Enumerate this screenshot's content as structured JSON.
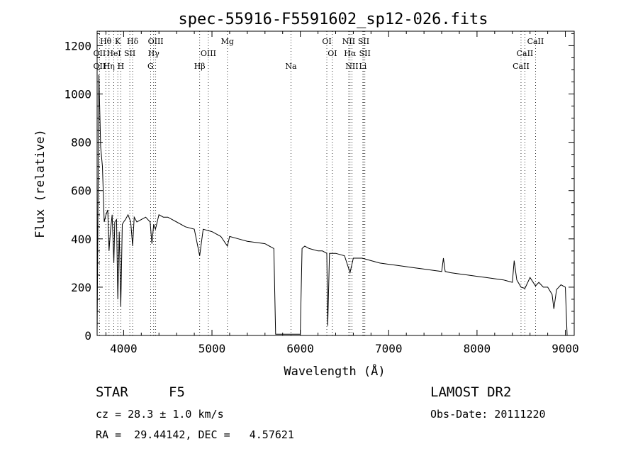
{
  "chart_data": {
    "type": "line",
    "title": "spec-55916-F5591602_sp12-026.fits",
    "xlabel": "Wavelength (Å)",
    "ylabel": "Flux (relative)",
    "xlim": [
      3700,
      9100
    ],
    "ylim": [
      0,
      1260
    ],
    "xticks": [
      4000,
      5000,
      6000,
      7000,
      8000,
      9000
    ],
    "yticks": [
      0,
      200,
      400,
      600,
      800,
      1000,
      1200
    ],
    "grid": false,
    "series": [
      {
        "x": [
          3700,
          3720,
          3740,
          3760,
          3780,
          3800,
          3820,
          3835,
          3850,
          3870,
          3889,
          3900,
          3920,
          3934,
          3950,
          3968,
          3985,
          4000,
          4020,
          4050,
          4080,
          4102,
          4120,
          4150,
          4200,
          4250,
          4300,
          4320,
          4340,
          4360,
          4400,
          4450,
          4500,
          4550,
          4600,
          4700,
          4800,
          4861,
          4900,
          5000,
          5100,
          5175,
          5200,
          5300,
          5400,
          5500,
          5600,
          5650,
          5700,
          5720,
          5900,
          6000,
          6020,
          6050,
          6100,
          6200,
          6250,
          6300,
          6310,
          6330,
          6400,
          6500,
          6563,
          6600,
          6700,
          6800,
          6900,
          7000,
          7100,
          7200,
          7300,
          7400,
          7500,
          7600,
          7620,
          7640,
          7700,
          7800,
          7900,
          8000,
          8100,
          8200,
          8300,
          8350,
          8400,
          8420,
          8450,
          8498,
          8542,
          8600,
          8662,
          8700,
          8750,
          8800,
          8850,
          8870,
          8900,
          8950,
          9000,
          9020
        ],
        "y": [
          0,
          1080,
          780,
          700,
          470,
          500,
          520,
          350,
          430,
          500,
          300,
          470,
          480,
          150,
          430,
          120,
          460,
          470,
          480,
          500,
          470,
          370,
          490,
          470,
          480,
          490,
          470,
          380,
          460,
          440,
          500,
          490,
          490,
          480,
          470,
          450,
          440,
          330,
          440,
          430,
          410,
          370,
          410,
          400,
          390,
          385,
          380,
          370,
          360,
          5,
          5,
          5,
          360,
          370,
          360,
          350,
          350,
          340,
          40,
          340,
          340,
          330,
          260,
          320,
          320,
          310,
          300,
          295,
          290,
          285,
          280,
          275,
          270,
          265,
          320,
          265,
          260,
          255,
          250,
          245,
          240,
          235,
          230,
          225,
          220,
          310,
          230,
          200,
          195,
          240,
          205,
          220,
          200,
          200,
          170,
          110,
          190,
          210,
          200,
          0
        ]
      }
    ],
    "line_markers": [
      {
        "label": "OII",
        "x": 3727,
        "row": 2
      },
      {
        "label": "Hθ",
        "x": 3798,
        "row": 1
      },
      {
        "label": "OII",
        "x": 3727,
        "row": 3
      },
      {
        "label": "HeI",
        "x": 3889,
        "row": 2
      },
      {
        "label": "Hη",
        "x": 3835,
        "row": 3
      },
      {
        "label": "K",
        "x": 3934,
        "row": 1
      },
      {
        "label": "H",
        "x": 3968,
        "row": 3
      },
      {
        "label": "SII",
        "x": 4070,
        "row": 2
      },
      {
        "label": "Hδ",
        "x": 4102,
        "row": 1
      },
      {
        "label": "OIII",
        "x": 4363,
        "row": 1
      },
      {
        "label": "Hγ",
        "x": 4340,
        "row": 2
      },
      {
        "label": "G",
        "x": 4305,
        "row": 3
      },
      {
        "label": "OIII",
        "x": 4959,
        "row": 2
      },
      {
        "label": "Hβ",
        "x": 4861,
        "row": 3
      },
      {
        "label": "Mg",
        "x": 5175,
        "row": 1
      },
      {
        "label": "Na",
        "x": 5894,
        "row": 3
      },
      {
        "label": "OI",
        "x": 6300,
        "row": 1
      },
      {
        "label": "OI",
        "x": 6363,
        "row": 2
      },
      {
        "label": "NII",
        "x": 6548,
        "row": 1
      },
      {
        "label": "SII",
        "x": 6717,
        "row": 1
      },
      {
        "label": "Hα",
        "x": 6563,
        "row": 2
      },
      {
        "label": "SII",
        "x": 6731,
        "row": 2
      },
      {
        "label": "NII",
        "x": 6584,
        "row": 3
      },
      {
        "label": "Li",
        "x": 6708,
        "row": 3
      },
      {
        "label": "CaII",
        "x": 8662,
        "row": 1
      },
      {
        "label": "CaII",
        "x": 8542,
        "row": 2
      },
      {
        "label": "CaII",
        "x": 8498,
        "row": 3
      }
    ]
  },
  "footer": {
    "class_label": "STAR",
    "subclass_label": "F5",
    "survey": "LAMOST DR2",
    "cz": "cz = 28.3 ± 1.0 km/s",
    "obs_date": "Obs-Date: 20111220",
    "coords": "RA =  29.44142, DEC =   4.57621"
  }
}
